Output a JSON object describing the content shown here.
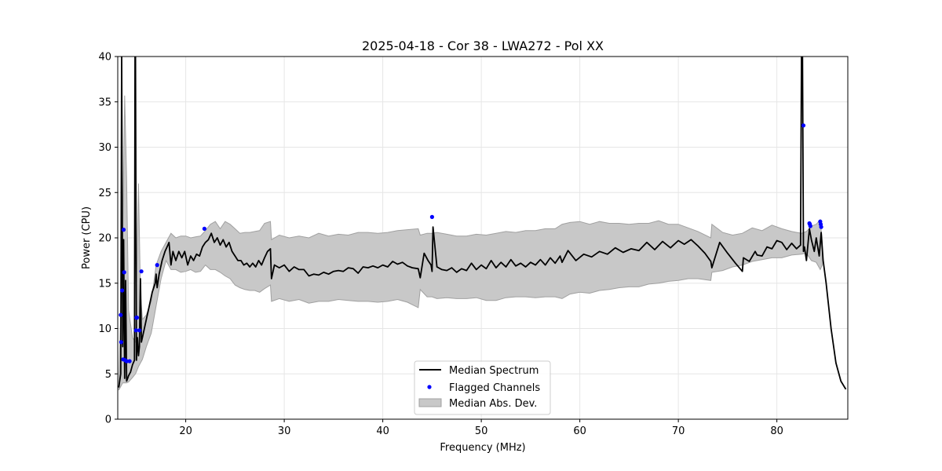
{
  "chart_data": {
    "type": "line",
    "title": "2025-04-18 - Cor 38 - LWA272 - Pol XX",
    "xlabel": "Frequency (MHz)",
    "ylabel": "Power (CPU)",
    "xlim": [
      13.1,
      87.2
    ],
    "ylim": [
      0,
      40
    ],
    "x_ticks": [
      20,
      30,
      40,
      50,
      60,
      70,
      80
    ],
    "y_ticks": [
      0,
      5,
      10,
      15,
      20,
      25,
      30,
      35,
      40
    ],
    "grid": true,
    "legend_position": "bottom-center",
    "legend": [
      "Median Spectrum",
      "Flagged Channels",
      "Median Abs. Dev."
    ],
    "colors": {
      "median": "#000000",
      "flagged": "#0000ff",
      "mad_fill": "#c8c8c8",
      "mad_edge": "#a0a0a0",
      "grid": "#e6e6e6"
    },
    "series": [
      {
        "name": "Median Spectrum",
        "x": [
          13.2,
          13.4,
          13.5,
          13.6,
          13.7,
          13.8,
          13.9,
          14.0,
          14.1,
          14.2,
          14.4,
          14.6,
          14.8,
          14.85,
          14.9,
          15.0,
          15.1,
          15.2,
          15.3,
          15.4,
          15.5,
          15.6,
          15.8,
          16.0,
          16.3,
          16.6,
          16.9,
          17.0,
          17.1,
          17.3,
          17.6,
          17.9,
          18.1,
          18.3,
          18.5,
          18.7,
          19.0,
          19.3,
          19.6,
          19.9,
          20.2,
          20.5,
          20.8,
          21.1,
          21.4,
          21.7,
          22.0,
          22.3,
          22.6,
          22.9,
          23.2,
          23.5,
          23.8,
          24.1,
          24.4,
          24.7,
          25.0,
          25.3,
          25.6,
          25.9,
          26.2,
          26.5,
          26.8,
          27.1,
          27.4,
          27.7,
          28.0,
          28.3,
          28.6,
          28.7,
          29.0,
          29.5,
          30.0,
          30.5,
          31.0,
          31.5,
          32.0,
          32.5,
          33.0,
          33.5,
          34.0,
          34.5,
          35.0,
          35.5,
          36.0,
          36.5,
          37.0,
          37.5,
          38.0,
          38.5,
          39.0,
          39.5,
          40.0,
          40.5,
          41.0,
          41.5,
          42.0,
          42.5,
          43.0,
          43.6,
          43.8,
          44.2,
          44.6,
          44.9,
          45.0,
          45.1,
          45.5,
          46.0,
          46.5,
          47.0,
          47.5,
          48.0,
          48.5,
          49.0,
          49.5,
          50.0,
          50.5,
          51.0,
          51.5,
          52.0,
          52.5,
          53.0,
          53.5,
          54.0,
          54.5,
          55.0,
          55.5,
          56.0,
          56.5,
          57.0,
          57.5,
          58.0,
          58.2,
          58.8,
          59.6,
          60.4,
          61.2,
          62.0,
          62.8,
          63.6,
          64.4,
          65.2,
          66.0,
          66.8,
          67.6,
          68.4,
          69.2,
          70.0,
          70.6,
          71.3,
          72.0,
          72.7,
          73.3,
          73.4,
          74.2,
          75.0,
          75.8,
          76.5,
          76.6,
          77.2,
          77.8,
          78.0,
          78.5,
          79.0,
          79.5,
          80.0,
          80.5,
          81.0,
          81.5,
          82.0,
          82.4,
          82.5,
          82.6,
          82.7,
          82.8,
          83.0,
          83.3,
          83.5,
          83.8,
          84.0,
          84.3,
          84.5,
          84.7,
          85.0,
          85.5,
          86.0,
          86.5,
          87.0
        ],
        "y": [
          3.5,
          5.0,
          40.0,
          8.0,
          19.8,
          4.5,
          15.3,
          4.2,
          4.5,
          4.8,
          5.2,
          6.0,
          6.5,
          40.0,
          40.0,
          6.5,
          9.0,
          7.0,
          8.0,
          15.5,
          8.5,
          9.0,
          10.0,
          11.0,
          12.5,
          14.0,
          15.0,
          16.0,
          14.5,
          16.0,
          17.5,
          18.5,
          19.0,
          19.5,
          17.0,
          18.5,
          17.5,
          18.5,
          17.8,
          18.5,
          17.0,
          18.0,
          17.5,
          18.2,
          18.0,
          19.0,
          19.5,
          19.8,
          20.5,
          19.5,
          20.0,
          19.2,
          19.8,
          19.0,
          19.5,
          18.5,
          18.0,
          17.5,
          17.5,
          17.0,
          17.2,
          16.8,
          17.2,
          16.8,
          17.5,
          17.0,
          17.8,
          18.5,
          18.8,
          15.5,
          17.0,
          16.7,
          17.0,
          16.3,
          16.8,
          16.5,
          16.5,
          15.8,
          16.0,
          15.9,
          16.2,
          16.0,
          16.3,
          16.4,
          16.3,
          16.7,
          16.6,
          16.1,
          16.8,
          16.7,
          16.9,
          16.7,
          17.0,
          16.8,
          17.4,
          17.1,
          17.3,
          16.9,
          16.7,
          16.6,
          15.6,
          18.3,
          17.5,
          17.0,
          16.3,
          21.2,
          16.8,
          16.5,
          16.4,
          16.7,
          16.2,
          16.6,
          16.4,
          17.2,
          16.5,
          17.0,
          16.6,
          17.5,
          16.7,
          17.3,
          16.8,
          17.6,
          16.9,
          17.2,
          16.8,
          17.3,
          17.0,
          17.6,
          17.0,
          17.8,
          17.2,
          18.0,
          17.3,
          18.6,
          17.5,
          18.2,
          17.9,
          18.5,
          18.2,
          18.9,
          18.4,
          18.8,
          18.6,
          19.5,
          18.7,
          19.6,
          18.9,
          19.7,
          19.3,
          19.8,
          19.1,
          18.3,
          17.4,
          16.7,
          19.5,
          18.3,
          17.2,
          16.3,
          17.8,
          17.4,
          18.5,
          18.1,
          18.0,
          19.0,
          18.8,
          19.7,
          19.5,
          18.7,
          19.4,
          18.8,
          19.2,
          40.0,
          40.0,
          18.5,
          19.0,
          17.5,
          21.0,
          19.8,
          18.5,
          20.0,
          18.0,
          20.6,
          17.5,
          15.0,
          10.0,
          6.2,
          4.2,
          3.3
        ]
      },
      {
        "name": "Median Abs. Dev.",
        "x": [
          13.2,
          13.6,
          13.8,
          14.0,
          14.2,
          14.6,
          14.9,
          15.2,
          15.4,
          15.6,
          16.0,
          16.5,
          17.0,
          17.5,
          18.0,
          18.5,
          19.0,
          19.5,
          20.0,
          20.5,
          21.0,
          21.5,
          22.0,
          22.5,
          23.0,
          23.5,
          24.0,
          24.5,
          25.0,
          25.5,
          26.0,
          26.5,
          27.0,
          27.5,
          28.0,
          28.6,
          28.7,
          29.5,
          30.5,
          31.5,
          32.5,
          33.5,
          34.5,
          35.5,
          36.5,
          37.5,
          38.5,
          39.5,
          40.5,
          41.5,
          42.5,
          43.6,
          43.8,
          44.5,
          45.0,
          45.5,
          46.5,
          47.5,
          48.5,
          49.5,
          50.5,
          51.5,
          52.5,
          53.5,
          54.5,
          55.5,
          56.5,
          57.5,
          58.2,
          59.0,
          60.0,
          61.0,
          62.0,
          63.0,
          64.0,
          65.0,
          66.0,
          67.0,
          68.0,
          69.0,
          70.0,
          71.0,
          72.0,
          73.3,
          73.4,
          74.5,
          75.5,
          76.5,
          77.5,
          78.5,
          79.5,
          80.5,
          81.5,
          82.5,
          83.0,
          83.5,
          84.0,
          84.4,
          84.6
        ],
        "upper": [
          4.0,
          20.0,
          35.7,
          26.5,
          12.0,
          9.0,
          8.5,
          26.0,
          14.0,
          11.0,
          11.5,
          13.0,
          17.0,
          18.5,
          19.5,
          20.5,
          20.0,
          20.2,
          20.2,
          20.0,
          20.1,
          20.2,
          20.8,
          21.5,
          21.8,
          21.0,
          21.8,
          21.5,
          21.0,
          20.5,
          20.6,
          20.6,
          20.7,
          20.8,
          21.6,
          21.8,
          19.8,
          20.3,
          20.0,
          20.2,
          20.0,
          20.5,
          20.2,
          20.4,
          20.3,
          20.6,
          20.6,
          20.5,
          20.6,
          20.8,
          20.9,
          21.0,
          20.3,
          20.5,
          20.5,
          20.6,
          20.4,
          20.2,
          20.2,
          20.4,
          20.3,
          20.5,
          20.7,
          20.6,
          20.8,
          20.8,
          21.0,
          21.0,
          21.5,
          21.7,
          21.8,
          21.5,
          21.8,
          21.6,
          21.6,
          21.5,
          21.6,
          21.6,
          21.9,
          21.5,
          21.5,
          21.1,
          20.7,
          20.0,
          21.5,
          20.6,
          20.3,
          20.5,
          21.1,
          20.8,
          21.4,
          21.0,
          20.7,
          20.5,
          20.7,
          21.3,
          21.5,
          22.0,
          19.5
        ],
        "lower": [
          3.2,
          4.0,
          4.0,
          4.0,
          4.1,
          4.6,
          5.0,
          5.8,
          6.2,
          6.6,
          8.0,
          9.5,
          12.5,
          15.5,
          17.5,
          16.5,
          16.5,
          16.2,
          16.3,
          16.5,
          16.2,
          16.3,
          17.0,
          16.5,
          16.5,
          16.2,
          15.8,
          15.5,
          14.8,
          14.5,
          14.3,
          14.2,
          14.2,
          14.0,
          14.4,
          14.8,
          13.0,
          13.3,
          13.0,
          13.2,
          12.8,
          13.0,
          13.0,
          13.2,
          13.1,
          13.0,
          13.0,
          12.9,
          13.0,
          13.2,
          12.9,
          12.3,
          14.3,
          13.5,
          13.5,
          13.3,
          13.4,
          13.3,
          13.3,
          13.4,
          13.1,
          13.1,
          13.4,
          13.5,
          13.5,
          13.4,
          13.5,
          13.5,
          13.3,
          13.8,
          14.0,
          13.9,
          14.2,
          14.3,
          14.5,
          14.6,
          14.6,
          14.9,
          15.0,
          15.2,
          15.3,
          15.5,
          15.5,
          15.3,
          16.2,
          16.4,
          16.8,
          17.0,
          17.4,
          17.6,
          17.8,
          17.8,
          18.1,
          18.2,
          18.3,
          17.5,
          17.3,
          16.5,
          17.0
        ]
      },
      {
        "name": "Flagged Channels",
        "x": [
          13.4,
          13.45,
          13.55,
          13.65,
          13.7,
          13.75,
          13.85,
          14.0,
          14.3,
          14.95,
          15.0,
          15.05,
          15.3,
          15.5,
          17.1,
          21.9,
          45.0,
          82.7,
          83.3,
          83.35,
          83.4,
          84.4,
          84.45,
          84.5
        ],
        "y": [
          11.5,
          8.5,
          14.2,
          6.6,
          20.9,
          16.2,
          6.5,
          6.4,
          6.4,
          9.8,
          11.2,
          11.2,
          9.8,
          16.3,
          17.0,
          21.0,
          22.3,
          32.4,
          21.6,
          21.5,
          21.3,
          21.8,
          21.5,
          21.2
        ]
      }
    ]
  }
}
